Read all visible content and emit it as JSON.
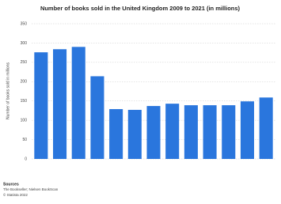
{
  "chart_data": {
    "type": "bar",
    "title": "Number of books sold in the United Kingdom 2009 to 2021 (in millions)",
    "y_label": "Number of books sold in millions",
    "values": [
      276,
      284,
      290,
      214,
      129,
      127,
      137,
      143,
      139,
      139,
      139,
      149,
      159
    ],
    "color": "#2a76dd",
    "ylim": [
      0,
      350
    ],
    "yticks": [
      0,
      50,
      100,
      150,
      200,
      250,
      300,
      350
    ],
    "grid": true,
    "footer": [
      "Sources",
      "The Bookseller; Nielsen BookScan",
      "© Statista 2022"
    ]
  }
}
